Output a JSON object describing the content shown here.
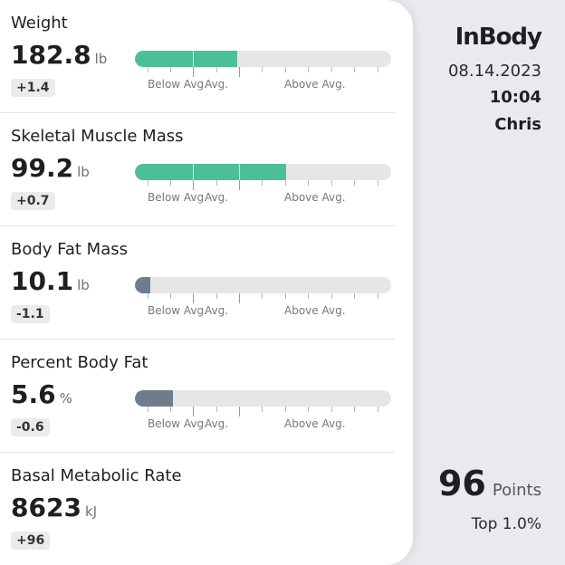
{
  "brand": {
    "logo": "InBody"
  },
  "session": {
    "date": "08.14.2023",
    "time": "10:04",
    "user": "Chris"
  },
  "score": {
    "value": "96",
    "unit": "Points",
    "rank": "Top 1.0%"
  },
  "scale_labels": {
    "below": "Below Avg.",
    "avg": "Avg.",
    "above": "Above Avg."
  },
  "colors": {
    "above_fill": "#4dbf98",
    "below_fill": "#6f7c8b",
    "track": "#e6e6e9"
  },
  "metrics": [
    {
      "name": "Weight",
      "value": "182.8",
      "unit": "lb",
      "delta": "+1.4",
      "bar_level": 0.4,
      "bar_color": "#4dbf98"
    },
    {
      "name": "Skeletal Muscle Mass",
      "value": "99.2",
      "unit": "lb",
      "delta": "+0.7",
      "bar_level": 0.59,
      "bar_color": "#4dbf98"
    },
    {
      "name": "Body Fat Mass",
      "value": "10.1",
      "unit": "lb",
      "delta": "-1.1",
      "bar_level": 0.06,
      "bar_color": "#6f7c8b"
    },
    {
      "name": "Percent Body Fat",
      "value": "5.6",
      "unit": "%",
      "delta": "-0.6",
      "bar_level": 0.15,
      "bar_color": "#6f7c8b"
    },
    {
      "name": "Basal Metabolic Rate",
      "value": "8623",
      "unit": "kJ",
      "delta": "+96"
    }
  ]
}
